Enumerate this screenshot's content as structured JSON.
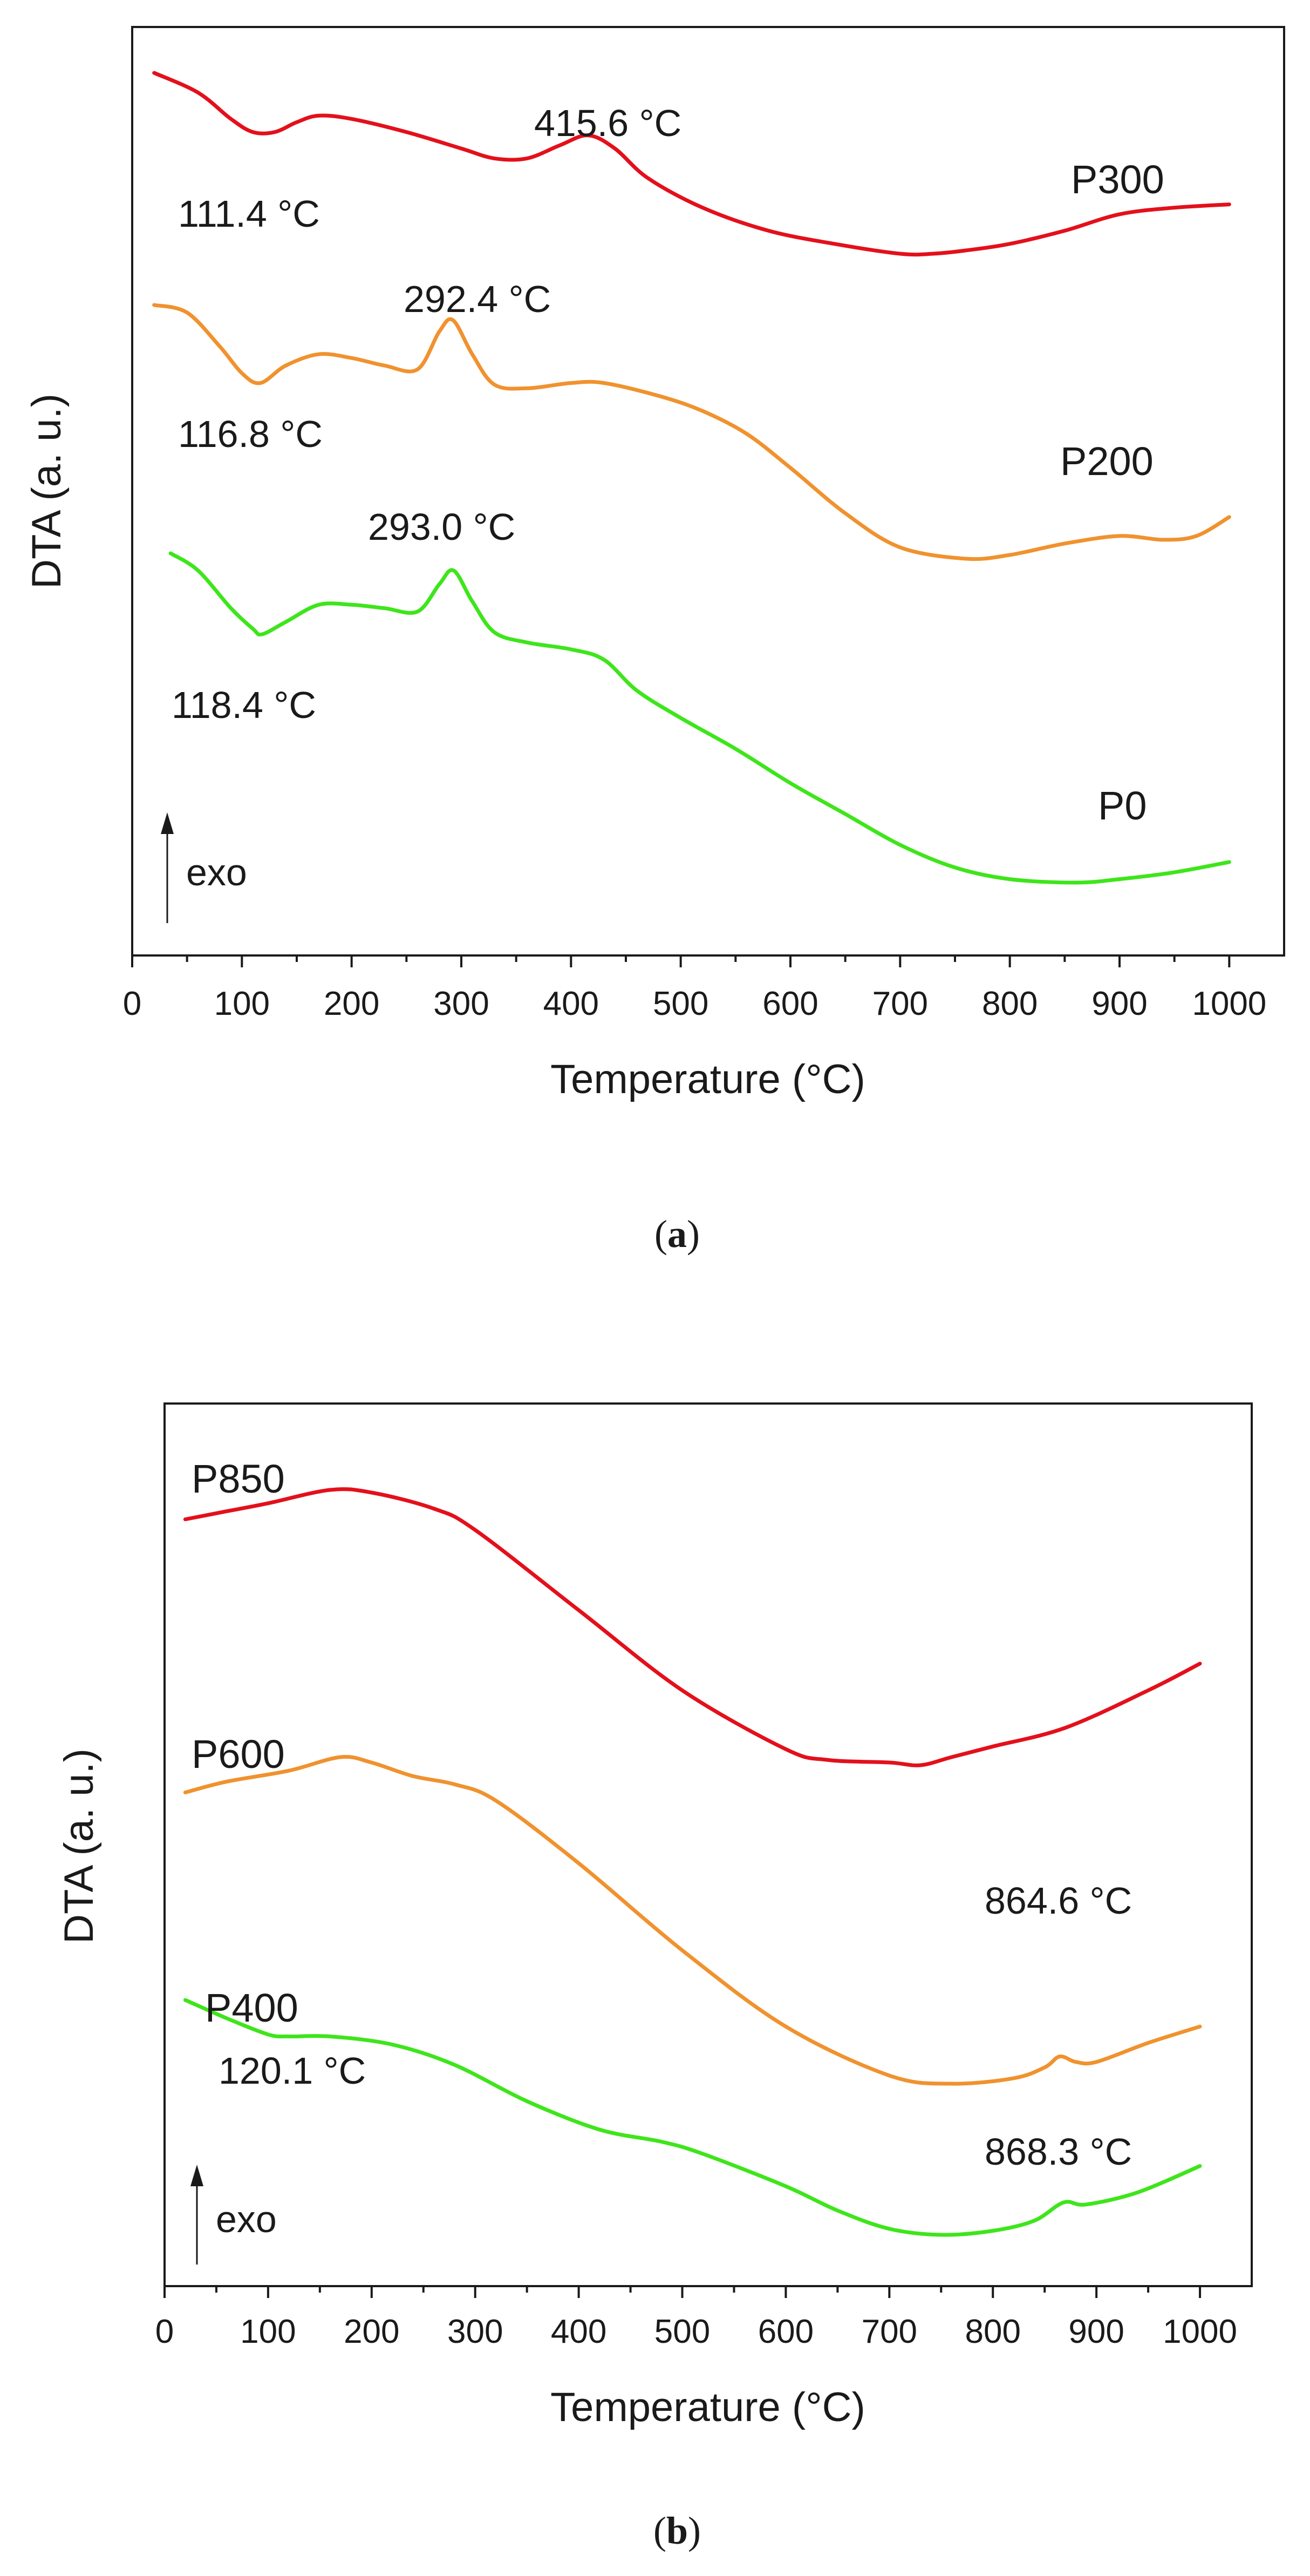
{
  "chart_data": [
    {
      "type": "line",
      "panel_label": "a",
      "xlabel": "Temperature (°C)",
      "ylabel": "DTA (a. u.)",
      "xlim": [
        0,
        1050
      ],
      "xticks": [
        0,
        100,
        200,
        300,
        400,
        500,
        600,
        700,
        800,
        900,
        1000
      ],
      "yticks_shown": false,
      "indicator": "exo",
      "series": [
        {
          "name": "P300",
          "color": "#e3101b",
          "x": [
            20,
            60,
            90,
            110,
            130,
            150,
            170,
            200,
            250,
            300,
            330,
            360,
            390,
            415.6,
            440,
            470,
            520,
            580,
            640,
            700,
            730,
            760,
            800,
            850,
            900,
            950,
            1000
          ],
          "y": [
            9.9,
            9.6,
            9.2,
            9.0,
            9.0,
            9.15,
            9.25,
            9.2,
            9.0,
            8.75,
            8.6,
            8.6,
            8.8,
            8.95,
            8.75,
            8.3,
            7.85,
            7.5,
            7.3,
            7.15,
            7.15,
            7.2,
            7.3,
            7.5,
            7.75,
            7.85,
            7.9
          ]
        },
        {
          "name": "P200",
          "color": "#f0922e",
          "x": [
            20,
            50,
            80,
            100,
            116.8,
            140,
            170,
            200,
            230,
            260,
            280,
            292.4,
            310,
            330,
            360,
            400,
            430,
            480,
            520,
            560,
            600,
            650,
            700,
            760,
            800,
            850,
            900,
            940,
            970,
            1000
          ],
          "y": [
            7.75,
            7.65,
            7.2,
            6.85,
            6.72,
            6.95,
            7.1,
            7.05,
            6.95,
            6.9,
            7.4,
            7.55,
            7.1,
            6.7,
            6.65,
            6.72,
            6.72,
            6.55,
            6.35,
            6.05,
            5.6,
            5.0,
            4.55,
            4.4,
            4.45,
            4.6,
            4.7,
            4.65,
            4.7,
            4.95
          ]
        },
        {
          "name": "P0",
          "color": "#3ee51b",
          "x": [
            35,
            60,
            90,
            110,
            118.4,
            140,
            170,
            200,
            230,
            260,
            280,
            293.0,
            310,
            330,
            360,
            400,
            430,
            460,
            500,
            550,
            600,
            650,
            700,
            750,
            800,
            860,
            900,
            950,
            1000
          ],
          "y": [
            4.8,
            4.55,
            4.0,
            3.7,
            3.62,
            3.8,
            4.05,
            4.05,
            4.0,
            3.95,
            4.35,
            4.55,
            4.1,
            3.65,
            3.5,
            3.4,
            3.25,
            2.8,
            2.4,
            1.95,
            1.45,
            1.0,
            0.55,
            0.22,
            0.05,
            0.0,
            0.05,
            0.15,
            0.3
          ]
        }
      ],
      "annotations": [
        {
          "text": "111.4 °C",
          "x": 111.4
        },
        {
          "text": "415.6 °C",
          "x": 415.6
        },
        {
          "text": "116.8 °C",
          "x": 116.8
        },
        {
          "text": "292.4 °C",
          "x": 292.4
        },
        {
          "text": "118.4 °C",
          "x": 118.4
        },
        {
          "text": "293.0 °C",
          "x": 293.0
        }
      ]
    },
    {
      "type": "line",
      "panel_label": "b",
      "xlabel": "Temperature (°C)",
      "ylabel": "DTA (a. u.)",
      "xlim": [
        0,
        1050
      ],
      "xticks": [
        0,
        100,
        200,
        300,
        400,
        500,
        600,
        700,
        800,
        900,
        1000
      ],
      "yticks_shown": false,
      "indicator": "exo",
      "series": [
        {
          "name": "P850",
          "color": "#e3101b",
          "x": [
            20,
            60,
            100,
            160,
            200,
            260,
            300,
            400,
            500,
            600,
            640,
            700,
            730,
            760,
            800,
            870,
            950,
            1000
          ],
          "y": [
            12.0,
            12.15,
            12.3,
            12.55,
            12.5,
            12.2,
            11.8,
            10.3,
            8.8,
            7.7,
            7.5,
            7.45,
            7.4,
            7.55,
            7.75,
            8.1,
            8.8,
            9.3
          ]
        },
        {
          "name": "P600",
          "color": "#f0922e",
          "x": [
            20,
            60,
            120,
            170,
            200,
            240,
            280,
            320,
            400,
            500,
            600,
            700,
            760,
            820,
            850,
            864.6,
            880,
            900,
            950,
            1000
          ],
          "y": [
            6.7,
            6.9,
            7.1,
            7.35,
            7.25,
            7.0,
            6.85,
            6.55,
            5.4,
            3.8,
            2.4,
            1.5,
            1.35,
            1.45,
            1.65,
            1.85,
            1.75,
            1.75,
            2.1,
            2.4
          ]
        },
        {
          "name": "P400",
          "color": "#3ee51b",
          "x": [
            20,
            60,
            100,
            120.1,
            160,
            220,
            280,
            350,
            420,
            480,
            520,
            600,
            650,
            700,
            750,
            800,
            840,
            868.3,
            890,
            940,
            1000
          ],
          "y": [
            1.2,
            0.75,
            0.35,
            0.3,
            0.3,
            0.1,
            -0.4,
            -1.3,
            -2.0,
            -2.3,
            -2.6,
            -3.4,
            -4.0,
            -4.45,
            -4.6,
            -4.5,
            -4.25,
            -3.8,
            -3.85,
            -3.55,
            -2.9
          ]
        }
      ],
      "annotations": [
        {
          "text": "120.1 °C",
          "x": 120.1
        },
        {
          "text": "864.6 °C",
          "x": 864.6
        },
        {
          "text": "868.3 °C",
          "x": 868.3
        }
      ]
    }
  ]
}
